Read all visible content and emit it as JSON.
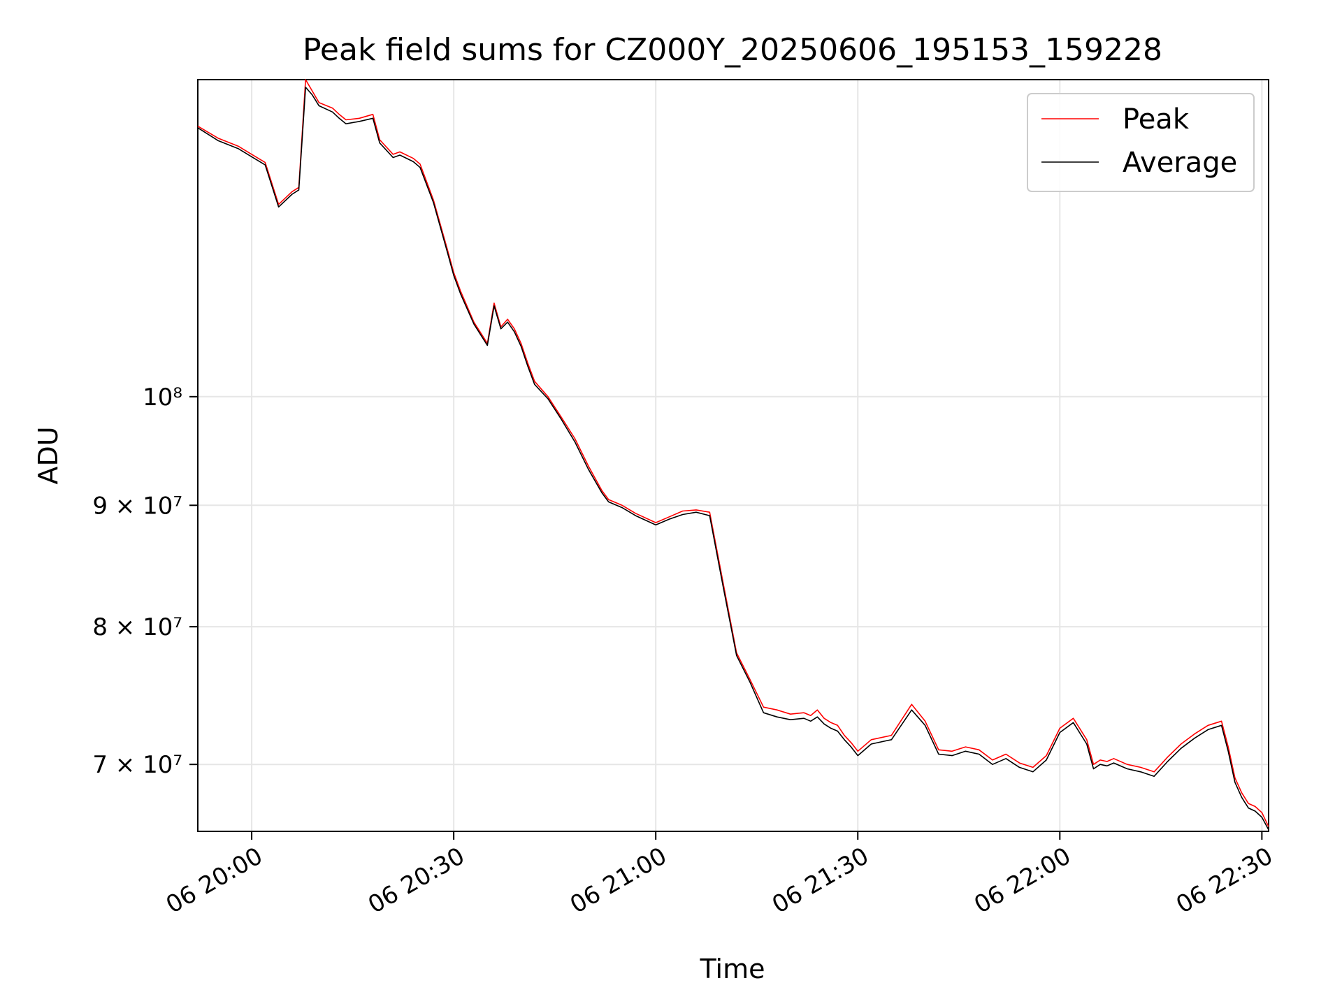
{
  "chart_data": {
    "type": "line",
    "title": "Peak field sums for CZ000Y_20250606_195153_159228",
    "xlabel": "Time",
    "ylabel": "ADU",
    "x_unit": "time (2025-06-06, HH:MM)",
    "xlim": [
      "19:52",
      "22:31"
    ],
    "ylim": [
      65600000,
      136000000
    ],
    "yscale": "log",
    "grid": true,
    "legend_position": "top-right",
    "x_ticks": [
      "06 20:00",
      "06 20:30",
      "06 21:00",
      "06 21:30",
      "06 22:00",
      "06 22:30"
    ],
    "y_ticks": [
      {
        "value": 70000000,
        "label": "7 × 10⁷"
      },
      {
        "value": 80000000,
        "label": "8 × 10⁷"
      },
      {
        "value": 90000000,
        "label": "9 × 10⁷"
      },
      {
        "value": 100000000,
        "label": "10⁸"
      }
    ],
    "series": [
      {
        "name": "Peak",
        "color": "#ff0000",
        "x": [
          "19:52",
          "19:55",
          "19:58",
          "20:00",
          "20:02",
          "20:04",
          "20:06",
          "20:07",
          "20:08",
          "20:09",
          "20:10",
          "20:12",
          "20:13",
          "20:14",
          "20:16",
          "20:18",
          "20:19",
          "20:21",
          "20:22",
          "20:24",
          "20:25",
          "20:27",
          "20:29",
          "20:30",
          "20:31",
          "20:33",
          "20:35",
          "20:36",
          "20:37",
          "20:38",
          "20:39",
          "20:40",
          "20:41",
          "20:42",
          "20:44",
          "20:46",
          "20:48",
          "20:50",
          "20:52",
          "20:53",
          "20:55",
          "20:57",
          "21:00",
          "21:02",
          "21:04",
          "21:06",
          "21:08",
          "21:10",
          "21:12",
          "21:14",
          "21:16",
          "21:18",
          "21:20",
          "21:22",
          "21:23",
          "21:24",
          "21:25",
          "21:26",
          "21:27",
          "21:28",
          "21:29",
          "21:30",
          "21:32",
          "21:35",
          "21:38",
          "21:40",
          "21:42",
          "21:44",
          "21:46",
          "21:48",
          "21:50",
          "21:52",
          "21:54",
          "21:56",
          "21:58",
          "22:00",
          "22:02",
          "22:04",
          "22:05",
          "22:06",
          "22:07",
          "22:08",
          "22:10",
          "22:12",
          "22:14",
          "22:16",
          "22:18",
          "22:20",
          "22:22",
          "22:24",
          "22:25",
          "22:26",
          "22:27",
          "22:28",
          "22:29",
          "22:30",
          "22:31"
        ],
        "y": [
          130000000,
          128500000,
          127500000,
          126500000,
          125500000,
          120500000,
          122000000,
          122500000,
          136000000,
          134500000,
          133000000,
          132300000,
          131500000,
          130800000,
          131000000,
          131500000,
          128300000,
          126500000,
          126800000,
          126000000,
          125300000,
          121000000,
          115500000,
          112800000,
          110800000,
          107500000,
          105300000,
          109500000,
          107000000,
          107800000,
          106800000,
          105300000,
          103300000,
          101500000,
          100000000,
          98000000,
          96000000,
          93500000,
          91300000,
          90500000,
          90000000,
          89300000,
          88500000,
          89000000,
          89500000,
          89600000,
          89400000,
          83500000,
          78000000,
          76000000,
          74000000,
          73800000,
          73500000,
          73600000,
          73400000,
          73800000,
          73200000,
          72900000,
          72700000,
          72000000,
          71500000,
          70900000,
          71700000,
          72000000,
          74200000,
          73000000,
          71000000,
          70900000,
          71200000,
          71000000,
          70300000,
          70700000,
          70100000,
          69800000,
          70600000,
          72500000,
          73200000,
          71700000,
          70000000,
          70300000,
          70200000,
          70400000,
          70000000,
          69800000,
          69500000,
          70500000,
          71400000,
          72100000,
          72700000,
          73000000,
          71200000,
          69100000,
          68100000,
          67400000,
          67200000,
          66800000,
          65900000
        ]
      },
      {
        "name": "Average",
        "color": "#000000",
        "x": [
          "19:52",
          "19:55",
          "19:58",
          "20:00",
          "20:02",
          "20:04",
          "20:06",
          "20:07",
          "20:08",
          "20:09",
          "20:10",
          "20:12",
          "20:13",
          "20:14",
          "20:16",
          "20:18",
          "20:19",
          "20:21",
          "20:22",
          "20:24",
          "20:25",
          "20:27",
          "20:29",
          "20:30",
          "20:31",
          "20:33",
          "20:35",
          "20:36",
          "20:37",
          "20:38",
          "20:39",
          "20:40",
          "20:41",
          "20:42",
          "20:44",
          "20:46",
          "20:48",
          "20:50",
          "20:52",
          "20:53",
          "20:55",
          "20:57",
          "21:00",
          "21:02",
          "21:04",
          "21:06",
          "21:08",
          "21:10",
          "21:12",
          "21:14",
          "21:16",
          "21:18",
          "21:20",
          "21:22",
          "21:23",
          "21:24",
          "21:25",
          "21:26",
          "21:27",
          "21:28",
          "21:29",
          "21:30",
          "21:32",
          "21:35",
          "21:38",
          "21:40",
          "21:42",
          "21:44",
          "21:46",
          "21:48",
          "21:50",
          "21:52",
          "21:54",
          "21:56",
          "21:58",
          "22:00",
          "22:02",
          "22:04",
          "22:05",
          "22:06",
          "22:07",
          "22:08",
          "22:10",
          "22:12",
          "22:14",
          "22:16",
          "22:18",
          "22:20",
          "22:22",
          "22:24",
          "22:25",
          "22:26",
          "22:27",
          "22:28",
          "22:29",
          "22:30",
          "22:31"
        ],
        "y": [
          129800000,
          128200000,
          127200000,
          126200000,
          125200000,
          120200000,
          121700000,
          122200000,
          135000000,
          134000000,
          132600000,
          131800000,
          131000000,
          130300000,
          130600000,
          131000000,
          127900000,
          126100000,
          126400000,
          125600000,
          124900000,
          120700000,
          115200000,
          112500000,
          110500000,
          107300000,
          105100000,
          109200000,
          106800000,
          107500000,
          106500000,
          105000000,
          103000000,
          101200000,
          99800000,
          97800000,
          95700000,
          93200000,
          91100000,
          90300000,
          89800000,
          89100000,
          88300000,
          88800000,
          89200000,
          89400000,
          89100000,
          83200000,
          77800000,
          75800000,
          73600000,
          73300000,
          73100000,
          73200000,
          73000000,
          73300000,
          72800000,
          72500000,
          72300000,
          71700000,
          71200000,
          70600000,
          71400000,
          71700000,
          73800000,
          72700000,
          70700000,
          70600000,
          70900000,
          70700000,
          70000000,
          70400000,
          69800000,
          69500000,
          70300000,
          72200000,
          72900000,
          71400000,
          69700000,
          70000000,
          69900000,
          70100000,
          69700000,
          69500000,
          69200000,
          70200000,
          71100000,
          71800000,
          72400000,
          72700000,
          70900000,
          68800000,
          67800000,
          67100000,
          66900000,
          66500000,
          65700000
        ]
      }
    ]
  }
}
